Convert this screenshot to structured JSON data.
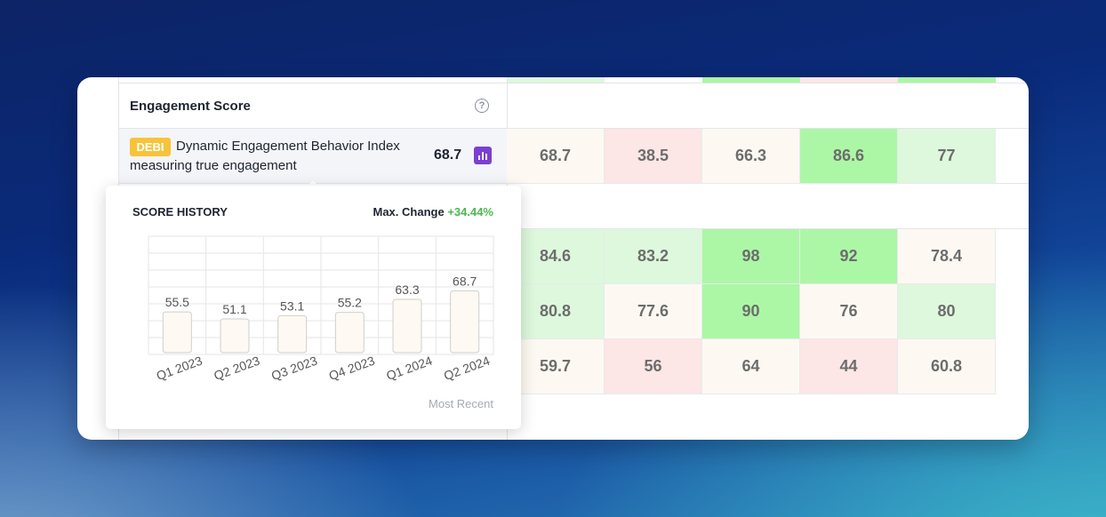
{
  "section": {
    "title": "Engagement Score",
    "help_icon": "?"
  },
  "metric": {
    "badge": "DEBI",
    "name_line1": "Dynamic Engagement Behavior Index",
    "name_line2": "measuring true engagement",
    "value": "68.7"
  },
  "grid": {
    "rows": [
      {
        "cells": [
          {
            "value": "68.7",
            "tone": "peach"
          },
          {
            "value": "38.5",
            "tone": "pink"
          },
          {
            "value": "66.3",
            "tone": "peach"
          },
          {
            "value": "86.6",
            "tone": "green"
          },
          {
            "value": "77",
            "tone": "lgreen"
          }
        ]
      },
      {
        "cells": [
          {
            "value": "84.6",
            "tone": "lgreen"
          },
          {
            "value": "83.2",
            "tone": "lgreen"
          },
          {
            "value": "98",
            "tone": "green"
          },
          {
            "value": "92",
            "tone": "green"
          },
          {
            "value": "78.4",
            "tone": "peach"
          }
        ]
      },
      {
        "cells": [
          {
            "value": "80.8",
            "tone": "lgreen"
          },
          {
            "value": "77.6",
            "tone": "peach"
          },
          {
            "value": "90",
            "tone": "green"
          },
          {
            "value": "76",
            "tone": "peach"
          },
          {
            "value": "80",
            "tone": "lgreen"
          }
        ]
      },
      {
        "cells": [
          {
            "value": "59.7",
            "tone": "peach"
          },
          {
            "value": "56",
            "tone": "pink"
          },
          {
            "value": "64",
            "tone": "peach"
          },
          {
            "value": "44",
            "tone": "pink"
          },
          {
            "value": "60.8",
            "tone": "peach"
          }
        ]
      }
    ],
    "top_strip_tones": [
      "lgreen",
      "white",
      "green",
      "pink",
      "green"
    ]
  },
  "popup": {
    "title": "SCORE HISTORY",
    "max_change_label": "Max. Change",
    "max_change_value": "+34.44%",
    "footer": "Most Recent"
  },
  "chart_data": {
    "type": "bar",
    "categories": [
      "Q1 2023",
      "Q2 2023",
      "Q3 2023",
      "Q4 2023",
      "Q1 2024",
      "Q2 2024"
    ],
    "values": [
      55.5,
      51.1,
      53.1,
      55.2,
      63.3,
      68.7
    ],
    "value_labels": [
      "55.5",
      "51.1",
      "53.1",
      "55.2",
      "63.3",
      "68.7"
    ],
    "bar_color": "#fef9f2",
    "grid": true
  },
  "colors": {
    "peach": "#fdf9f2",
    "pink": "#fce6e6",
    "lgreen": "#ddf8dc",
    "green": "#abf7a6",
    "badge": "#f6c33a",
    "chart_button": "#7b3fd1",
    "positive": "#4cb84f"
  }
}
